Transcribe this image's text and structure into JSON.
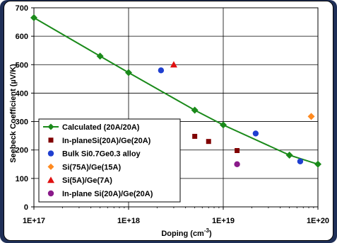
{
  "chart_data": {
    "type": "scatter",
    "title": "",
    "xlabel_base": "Doping (cm",
    "xlabel_sup": "-3",
    "xlabel_end": ")",
    "ylabel": "Seebeck Coefficient (µV/K)",
    "x_scale": "log",
    "xlim": [
      1e+17,
      1e+20
    ],
    "ylim": [
      0,
      700
    ],
    "x_ticks": [
      {
        "value": 1e+17,
        "label": "1E+17"
      },
      {
        "value": 1e+18,
        "label": "1E+18"
      },
      {
        "value": 1e+19,
        "label": "1E+19"
      },
      {
        "value": 1e+20,
        "label": "1E+20"
      }
    ],
    "y_ticks": [
      0,
      100,
      200,
      300,
      400,
      500,
      600,
      700
    ],
    "grid": true,
    "legend_position": "bottom-left",
    "series": [
      {
        "name": "Calculated (20A/20A)",
        "marker": "diamond",
        "color": "#1a8a1a",
        "line": true,
        "points": [
          [
            1e+17,
            665
          ],
          [
            5e+17,
            530
          ],
          [
            1e+18,
            472
          ],
          [
            5e+18,
            340
          ],
          [
            1e+19,
            288
          ],
          [
            5e+19,
            182
          ],
          [
            1e+20,
            150
          ]
        ]
      },
      {
        "name": "In-planeSi(20A)/Ge(20A)",
        "marker": "square",
        "color": "#800000",
        "line": false,
        "points": [
          [
            5e+18,
            248
          ],
          [
            7e+18,
            230
          ],
          [
            1.4e+19,
            198
          ]
        ]
      },
      {
        "name": "Bulk Si0.7Ge0.3 alloy",
        "marker": "circle",
        "color": "#1f3fd0",
        "line": false,
        "points": [
          [
            2.2e+18,
            480
          ],
          [
            2.2e+19,
            258
          ],
          [
            6.5e+19,
            160
          ]
        ]
      },
      {
        "name": "Si(75A)/Ge(15A)",
        "marker": "diamond",
        "color": "#ff8a1f",
        "line": false,
        "points": [
          [
            8.5e+19,
            318
          ]
        ]
      },
      {
        "name": "Si(5A)/Ge(7A)",
        "marker": "triangle",
        "color": "#e01010",
        "line": false,
        "points": [
          [
            3e+18,
            500
          ]
        ]
      },
      {
        "name": "In-plane Si(20A)/Ge(20A)",
        "marker": "circle",
        "color": "#8a1a8a",
        "line": false,
        "points": [
          [
            1.4e+19,
            150
          ]
        ]
      }
    ]
  }
}
